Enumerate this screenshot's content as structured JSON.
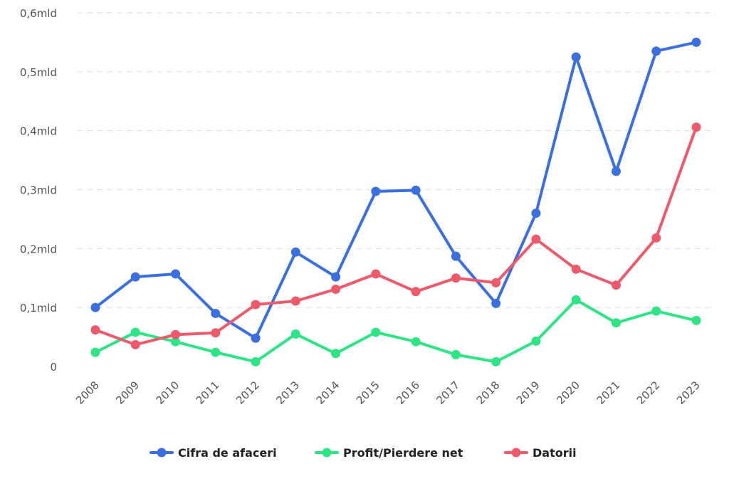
{
  "chart_data": {
    "type": "line",
    "title": "",
    "xlabel": "",
    "ylabel": "",
    "categories": [
      "2008",
      "2009",
      "2010",
      "2011",
      "2012",
      "2013",
      "2014",
      "2015",
      "2016",
      "2017",
      "2018",
      "2019",
      "2020",
      "2021",
      "2022",
      "2023"
    ],
    "ylim": [
      0,
      0.6
    ],
    "yticks": [
      {
        "value": 0,
        "label": "0"
      },
      {
        "value": 0.1,
        "label": "0,1mld"
      },
      {
        "value": 0.2,
        "label": "0,2mld"
      },
      {
        "value": 0.3,
        "label": "0,3mld"
      },
      {
        "value": 0.4,
        "label": "0,4mld"
      },
      {
        "value": 0.5,
        "label": "0,5mld"
      },
      {
        "value": 0.6,
        "label": "0,6mld"
      }
    ],
    "grid": true,
    "legend_position": "bottom",
    "series": [
      {
        "name": "Cifra de afaceri",
        "color": "#3b6fe0",
        "values": [
          0.1,
          0.152,
          0.157,
          0.09,
          0.048,
          0.194,
          0.152,
          0.297,
          0.299,
          0.187,
          0.107,
          0.26,
          0.525,
          0.331,
          0.535,
          0.55
        ]
      },
      {
        "name": "Profit/Pierdere net",
        "color": "#2ee585",
        "values": [
          0.024,
          0.058,
          0.042,
          0.024,
          0.008,
          0.055,
          0.022,
          0.058,
          0.042,
          0.02,
          0.008,
          0.043,
          0.113,
          0.074,
          0.094,
          0.078
        ]
      },
      {
        "name": "Datorii",
        "color": "#ee5a6b",
        "values": [
          0.062,
          0.037,
          0.054,
          0.057,
          0.105,
          0.111,
          0.131,
          0.157,
          0.127,
          0.15,
          0.142,
          0.216,
          0.165,
          0.138,
          0.218,
          0.406
        ]
      }
    ]
  }
}
